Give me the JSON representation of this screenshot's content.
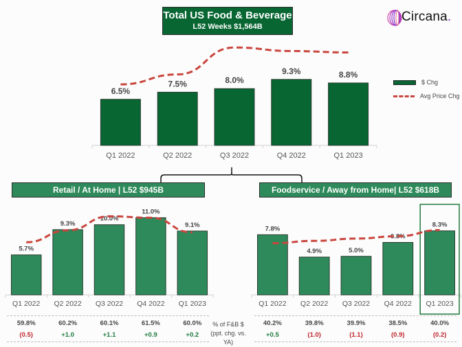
{
  "header": {
    "title": "Total US Food & Beverage",
    "subtitle": "L52 Weeks $1,564B",
    "logo_text": "Circana",
    "logo_dot": "."
  },
  "legend": {
    "bar_label": "$ Chg",
    "line_label": "Avg Price Chg"
  },
  "colors": {
    "top_bar": "#076632",
    "sub_bar": "#2e8a5a",
    "price_line": "#c9453d",
    "positive": "#1e7b3c",
    "negative": "#c0262c",
    "highlight_border": "#1e7b3c"
  },
  "chart_data": [
    {
      "id": "total",
      "type": "bar",
      "title": "Total US Food & Beverage",
      "subtitle": "L52 Weeks $1,564B",
      "categories": [
        "Q1 2022",
        "Q2 2022",
        "Q3 2022",
        "Q4 2022",
        "Q1 2023"
      ],
      "series": [
        {
          "name": "$ Chg",
          "type": "bar",
          "values": [
            6.5,
            7.5,
            8.0,
            9.3,
            8.8
          ],
          "labels": [
            "6.5%",
            "7.5%",
            "8.0%",
            "9.3%",
            "8.8%"
          ]
        },
        {
          "name": "Avg Price Chg",
          "type": "line",
          "style": "dashed",
          "values": [
            8.6,
            10.0,
            13.8,
            13.3,
            13.1
          ]
        }
      ],
      "ylim": [
        0,
        14.5
      ],
      "legend_position": "right",
      "grid": false
    },
    {
      "id": "retail",
      "type": "bar",
      "title": "Retail / At Home | L52 $945B",
      "categories": [
        "Q1 2022",
        "Q2 2022",
        "Q3 2022",
        "Q4 2022",
        "Q1 2023"
      ],
      "series": [
        {
          "name": "$ Chg",
          "type": "bar",
          "values": [
            5.7,
            9.3,
            10.0,
            11.0,
            9.1
          ],
          "labels": [
            "5.7%",
            "9.3%",
            "10.0%",
            "11.0%",
            "9.1%"
          ]
        },
        {
          "name": "Avg Price Chg",
          "type": "line",
          "style": "dashed",
          "values": [
            7.5,
            9.2,
            11.2,
            11.0,
            8.9
          ]
        }
      ],
      "ylim": [
        0,
        13
      ],
      "grid": false
    },
    {
      "id": "foodservice",
      "type": "bar",
      "title": "Foodservice / Away from Home| L52 $618B",
      "categories": [
        "Q1 2022",
        "Q2 2022",
        "Q3 2022",
        "Q4 2022",
        "Q1 2023"
      ],
      "highlighted_category": "Q1 2023",
      "series": [
        {
          "name": "$ Chg",
          "type": "bar",
          "values": [
            7.8,
            4.9,
            5.0,
            6.8,
            8.3
          ],
          "labels": [
            "7.8%",
            "4.9%",
            "5.0%",
            "6.8%",
            "8.3%"
          ]
        },
        {
          "name": "Avg Price Chg",
          "type": "line",
          "style": "dashed",
          "values": [
            6.7,
            7.0,
            7.3,
            7.6,
            8.4
          ]
        }
      ],
      "ylim": [
        0,
        9.6
      ],
      "grid": false
    }
  ],
  "share_table": {
    "label_line1": "% of F&B $",
    "label_line2": "(ppt. chg. vs. YA)",
    "retail_share": [
      "59.8%",
      "60.2%",
      "60.1%",
      "61.5%",
      "60.0%"
    ],
    "retail_change": [
      "(0.5)",
      "+1.0",
      "+1.1",
      "+0.9",
      "+0.2"
    ],
    "foodservice_share": [
      "40.2%",
      "39.8%",
      "39.9%",
      "38.5%",
      "40.0%"
    ],
    "foodservice_change": [
      "+0.5",
      "(1.0)",
      "(1.1)",
      "(0.9)",
      "(0.2)"
    ]
  }
}
